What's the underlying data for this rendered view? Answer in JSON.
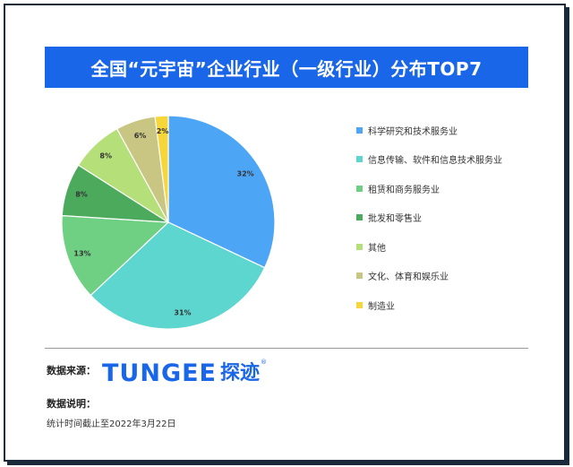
{
  "header": {
    "title": "全国“元宇宙”企业行业（一级行业）分布TOP7"
  },
  "chart_data": {
    "type": "pie",
    "title": "全国“元宇宙”企业行业（一级行业）分布TOP7",
    "unit": "%",
    "start_angle_deg": 0,
    "legend_position": "right",
    "categories": [
      "科学研究和技术服务业",
      "信息传输、软件和信息技术服务业",
      "租赁和商务服务业",
      "批发和零售业",
      "其他",
      "文化、体育和娱乐业",
      "制造业"
    ],
    "values": [
      32,
      31,
      13,
      8,
      8,
      6,
      2
    ],
    "labels": [
      "32%",
      "31%",
      "13%",
      "8%",
      "8%",
      "6%",
      "2%"
    ],
    "colors": [
      "#4da6f5",
      "#5cd6cf",
      "#6fcf83",
      "#4caa5c",
      "#b5df79",
      "#c9c684",
      "#f7d63a"
    ]
  },
  "footer": {
    "source_label": "数据来源：",
    "logo_text": "TUNGEE",
    "logo_cn": "探迹",
    "logo_reg": "®",
    "note_label": "数据说明：",
    "note_text": "统计时间截止至2022年3月22日"
  }
}
